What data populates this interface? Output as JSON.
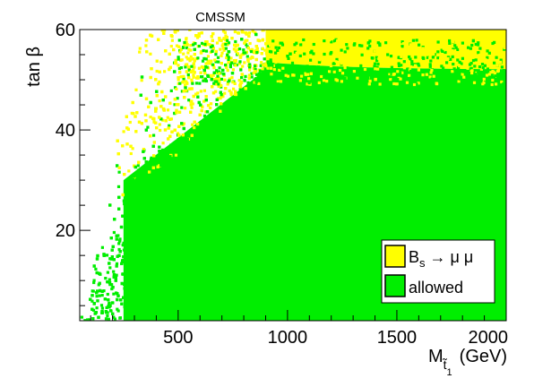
{
  "chart_data": {
    "type": "scatter",
    "title": "CMSSM",
    "xlabel": {
      "main": "M",
      "subscript": "t̃",
      "subsubscript": "1",
      "unit": "(GeV)"
    },
    "ylabel": "tan β",
    "xlim": [
      50,
      2000
    ],
    "ylim": [
      2,
      60
    ],
    "x_ticks": [
      500,
      1000,
      1500,
      2000
    ],
    "y_ticks": [
      20,
      40,
      60
    ],
    "grid": false,
    "legend_position": "bottom-right",
    "series": [
      {
        "name_main": "B",
        "name_sub": "s",
        "name_rest": " → μ μ",
        "color": "#ffff00",
        "region": "excluded points, dominant for tan β above about 52 and at low M_t1 with large tan β"
      },
      {
        "name": "allowed",
        "color": "#00ee00",
        "region": "allowed points, filling most of the plane below tan β ≈ 52"
      }
    ],
    "colors": {
      "excluded": "#ffff00",
      "allowed": "#00ee00",
      "frame": "#000000",
      "background": "#ffffff"
    }
  }
}
